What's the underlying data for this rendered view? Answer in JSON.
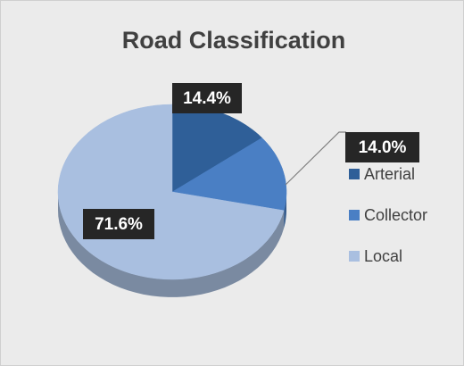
{
  "chart_data": {
    "type": "pie",
    "title": "Road Classification",
    "categories": [
      "Arterial",
      "Collector",
      "Local"
    ],
    "values": [
      14.4,
      14.0,
      71.6
    ],
    "value_labels": [
      "14.4%",
      "14.0%",
      "71.6%"
    ],
    "colors": [
      "#2f5f98",
      "#4a7fc4",
      "#a9bfe0"
    ],
    "legend": "right"
  }
}
